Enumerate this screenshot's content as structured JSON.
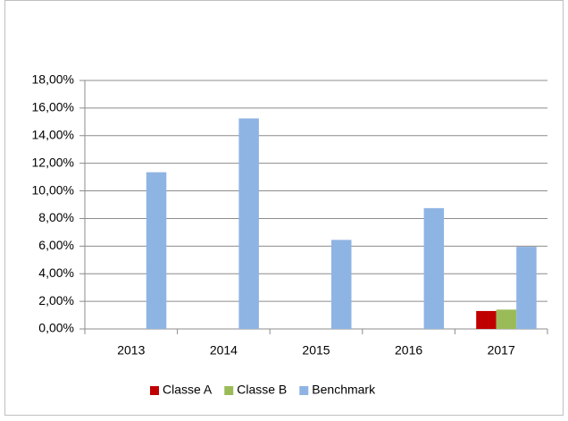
{
  "chart_data": {
    "type": "bar",
    "categories": [
      "2013",
      "2014",
      "2015",
      "2016",
      "2017"
    ],
    "series": [
      {
        "name": "Classe A",
        "color": "#c00000",
        "values": [
          null,
          null,
          null,
          null,
          1.3
        ]
      },
      {
        "name": "Classe B",
        "color": "#9bbb59",
        "values": [
          null,
          null,
          null,
          null,
          1.4
        ]
      },
      {
        "name": "Benchmark",
        "color": "#8eb4e3",
        "values": [
          11.35,
          15.25,
          6.45,
          8.75,
          5.95
        ]
      }
    ],
    "ylim": [
      0,
      18
    ],
    "yticks": [
      {
        "value": 0,
        "label": "0,00%"
      },
      {
        "value": 2,
        "label": "2,00%"
      },
      {
        "value": 4,
        "label": "4,00%"
      },
      {
        "value": 6,
        "label": "6,00%"
      },
      {
        "value": 8,
        "label": "8,00%"
      },
      {
        "value": 10,
        "label": "10,00%"
      },
      {
        "value": 12,
        "label": "12,00%"
      },
      {
        "value": 14,
        "label": "14,00%"
      },
      {
        "value": 16,
        "label": "16,00%"
      },
      {
        "value": 18,
        "label": "18,00%"
      }
    ],
    "grid": true,
    "legend": "bottom"
  }
}
